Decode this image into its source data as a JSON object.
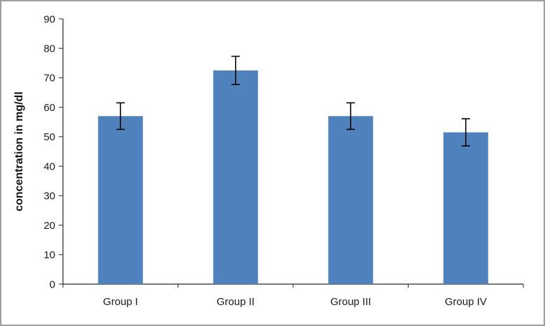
{
  "chart_data": {
    "type": "bar",
    "title": "",
    "xlabel": "",
    "ylabel": "concentration in mg/dl",
    "categories": [
      "Group I",
      "Group II",
      "Group III",
      "Group IV"
    ],
    "series": [
      {
        "name": "concentration",
        "values": [
          57,
          72.5,
          57,
          51.5
        ],
        "errors": [
          4.5,
          4.8,
          4.5,
          4.6
        ]
      }
    ],
    "ylim": [
      0,
      90
    ],
    "ytick_step": 10,
    "ytick_labels": [
      "0",
      "10",
      "20",
      "30",
      "40",
      "50",
      "60",
      "70",
      "80",
      "90"
    ],
    "grid": false,
    "legend": "none",
    "bar_color": "#4f81bd",
    "error_color": "#000000",
    "axis_color": "#262626"
  }
}
